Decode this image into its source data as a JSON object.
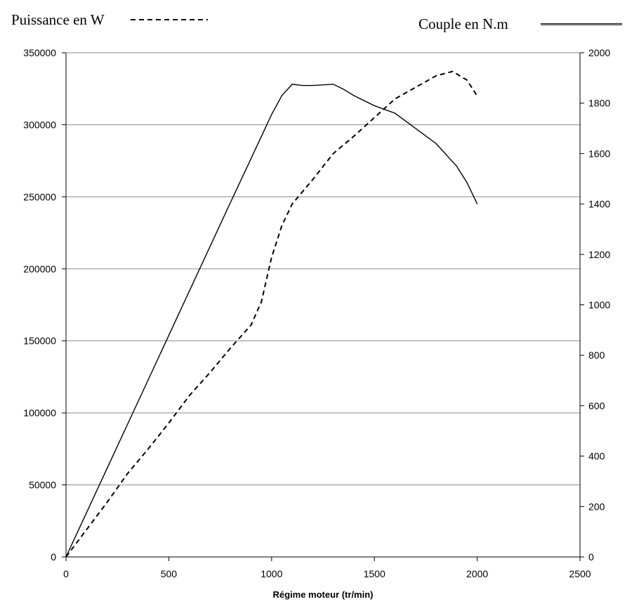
{
  "chart_data": {
    "type": "line",
    "xlabel": "Régime moteur (tr/min)",
    "xlim": [
      0,
      2500
    ],
    "x_ticks": [
      0,
      500,
      1000,
      1500,
      2000,
      2500
    ],
    "y_left": {
      "lim": [
        0,
        350000
      ],
      "ticks": [
        0,
        50000,
        100000,
        150000,
        200000,
        250000,
        300000,
        350000
      ]
    },
    "y_right": {
      "lim": [
        0,
        2000
      ],
      "ticks": [
        0,
        200,
        400,
        600,
        800,
        1000,
        1200,
        1400,
        1600,
        1800,
        2000
      ]
    },
    "grid": true,
    "legend": [
      {
        "label": "Puissance en W",
        "style": "dashed",
        "position": "top-left"
      },
      {
        "label": "Couple en N.m",
        "style": "solid",
        "position": "top-right"
      }
    ],
    "series": [
      {
        "name": "Puissance en W",
        "axis": "left",
        "style": "dashed",
        "x": [
          0,
          100,
          200,
          300,
          400,
          500,
          600,
          700,
          800,
          900,
          950,
          1000,
          1050,
          1100,
          1200,
          1300,
          1400,
          1500,
          1600,
          1700,
          1800,
          1880,
          1950,
          2000
        ],
        "y": [
          0,
          19000,
          38000,
          58000,
          75000,
          93000,
          112000,
          128000,
          145000,
          161000,
          177000,
          208000,
          230000,
          245000,
          262000,
          280000,
          292000,
          305000,
          318000,
          326000,
          334000,
          337000,
          331000,
          320000
        ]
      },
      {
        "name": "Couple en N.m",
        "axis": "right",
        "style": "solid",
        "x": [
          0,
          200,
          400,
          600,
          800,
          900,
          1000,
          1050,
          1100,
          1150,
          1200,
          1300,
          1350,
          1400,
          1500,
          1600,
          1700,
          1800,
          1900,
          1950,
          2000
        ],
        "y": [
          0,
          352,
          703,
          1055,
          1406,
          1580,
          1755,
          1830,
          1875,
          1870,
          1870,
          1875,
          1855,
          1830,
          1790,
          1760,
          1700,
          1640,
          1550,
          1485,
          1400
        ]
      }
    ]
  }
}
